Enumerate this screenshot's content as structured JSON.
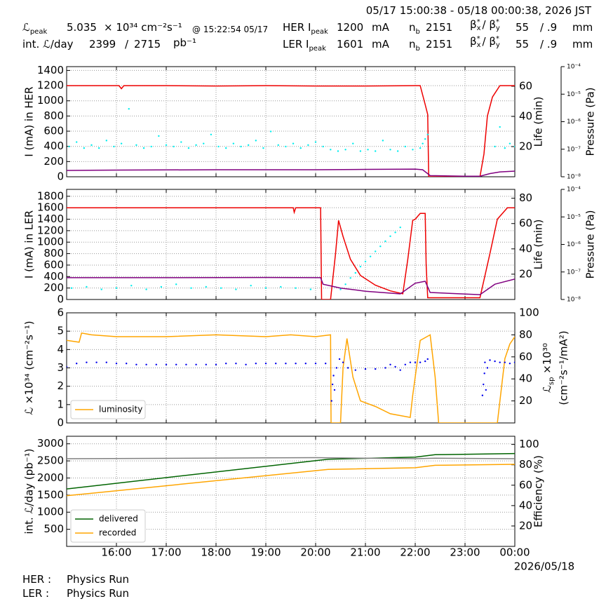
{
  "header": {
    "period": "05/17 15:00:38 - 05/18 00:00:38, 2026 JST",
    "peak_lumi": {
      "label": "ℒ",
      "label_sub": "peak",
      "value": 5.035,
      "unit": "× 10³⁴ cm⁻²s⁻¹",
      "time": "@ 15:22:54 05/17"
    },
    "int_lumi": {
      "label": "int. ℒ/day",
      "recorded": 2399,
      "sep": "/",
      "delivered": 2715,
      "unit": "pb⁻¹"
    },
    "her": {
      "label": "HER I",
      "label_sub": "peak",
      "current": 1200,
      "unit": "mA",
      "nb_label": "n",
      "nb_sub": "b",
      "nb": 2151,
      "b1": "β",
      "b1_sup": "*",
      "b1_sub": "x",
      "b2": "/ β",
      "b2_sup": "*",
      "b2_sub": "y",
      "beta_x": 55,
      "beta_y": "/ .9",
      "beta_unit": "mm"
    },
    "ler": {
      "label": "LER I",
      "label_sub": "peak",
      "current": 1601,
      "unit": "mA",
      "nb_label": "n",
      "nb_sub": "b",
      "nb": 2151,
      "b1": "β",
      "b1_sup": "*",
      "b1_sub": "x",
      "b2": "/ β",
      "b2_sup": "*",
      "b2_sub": "y",
      "beta_x": 55,
      "beta_y": "/ .9",
      "beta_unit": "mm"
    }
  },
  "footer": {
    "rows": [
      [
        "HER :",
        "Physics Run"
      ],
      [
        "LER :",
        "Physics Run"
      ]
    ]
  },
  "chart_data": [
    {
      "type": "line",
      "grid": true,
      "xlim": [
        15,
        24
      ],
      "xticks": [
        16,
        17,
        18,
        19,
        20,
        21,
        22,
        23
      ],
      "xtick_labels": false,
      "ylabel": "I (mA) in HER",
      "ylim": [
        0,
        1450
      ],
      "yticks": [
        0,
        200,
        400,
        600,
        800,
        1000,
        1200,
        1400
      ],
      "y2label": "Life (min)",
      "y2lim": [
        0,
        73
      ],
      "y2ticks": [
        20,
        40,
        60
      ],
      "y3label": "Pressure (Pa)",
      "y3lim": [
        1e-08,
        0.0001
      ],
      "y3log": true,
      "y3ticks": [
        {
          "value": 1e-08,
          "label": "10⁻⁸"
        },
        {
          "value": 1e-07,
          "label": "10⁻⁷"
        },
        {
          "value": 1e-06,
          "label": "10⁻⁶"
        },
        {
          "value": 1e-05,
          "label": "10⁻⁵"
        },
        {
          "value": 0.0001,
          "label": "10⁻⁴"
        }
      ],
      "series": [
        {
          "color": "#ee0000",
          "x": [
            15,
            15.5,
            16.05,
            16.1,
            16.15,
            16.5,
            17,
            18,
            19,
            20,
            21,
            22,
            22.1,
            22.2,
            22.25,
            22.27,
            22.5,
            23,
            23.3,
            23.38,
            23.45,
            23.55,
            23.7,
            24
          ],
          "values": [
            1200,
            1200,
            1200,
            1160,
            1200,
            1200,
            1200,
            1195,
            1200,
            1195,
            1195,
            1200,
            1200,
            950,
            820,
            0,
            0,
            0,
            0,
            300,
            800,
            1050,
            1200,
            1200
          ]
        },
        {
          "color": "#00eeee",
          "axis": "y2",
          "mode": "markers",
          "x": [
            15.05,
            15.2,
            15.35,
            15.5,
            15.65,
            15.8,
            15.95,
            16.1,
            16.25,
            16.4,
            16.55,
            16.7,
            16.85,
            17.0,
            17.15,
            17.3,
            17.45,
            17.6,
            17.75,
            17.9,
            18.05,
            18.2,
            18.35,
            18.5,
            18.65,
            18.8,
            18.95,
            19.1,
            19.25,
            19.4,
            19.55,
            19.7,
            19.85,
            20.0,
            20.15,
            20.3,
            20.45,
            20.6,
            20.75,
            20.9,
            21.05,
            21.2,
            21.35,
            21.5,
            21.65,
            21.8,
            21.95,
            22.1,
            22.15,
            22.2,
            22.25,
            23.6,
            23.7,
            23.8,
            23.9,
            24.0
          ],
          "values": [
            20,
            23,
            19,
            21,
            19,
            24,
            20,
            22,
            45,
            21,
            19,
            20,
            27,
            21,
            20,
            23,
            19,
            21,
            22,
            28,
            20,
            19,
            22,
            20,
            21,
            24,
            19,
            30,
            21,
            20,
            22,
            19,
            21,
            23,
            20,
            18,
            17,
            18,
            22,
            17,
            18,
            17,
            24,
            18,
            17,
            20,
            18,
            19,
            22,
            25,
            28,
            20,
            33,
            19,
            22,
            20
          ]
        },
        {
          "color": "#800080",
          "axis": "y3",
          "x": [
            15,
            16,
            18,
            20,
            21,
            22,
            22.15,
            22.3,
            23,
            23.3,
            23.5,
            23.7,
            24
          ],
          "values": [
            1.7e-08,
            1.75e-08,
            1.8e-08,
            1.8e-08,
            1.85e-08,
            1.9e-08,
            1.8e-08,
            1.1e-08,
            1.05e-08,
            1.05e-08,
            1.3e-08,
            1.5e-08,
            1.6e-08
          ]
        }
      ]
    },
    {
      "type": "line",
      "grid": true,
      "xlim": [
        15,
        24
      ],
      "xticks": [
        16,
        17,
        18,
        19,
        20,
        21,
        22,
        23
      ],
      "xtick_labels": false,
      "ylabel": "I (mA) in LER",
      "ylim": [
        0,
        1920
      ],
      "yticks": [
        0,
        200,
        400,
        600,
        800,
        1000,
        1200,
        1400,
        1600,
        1800
      ],
      "y2label": "Life (min)",
      "y2lim": [
        0,
        87
      ],
      "y2ticks": [
        20,
        40,
        60,
        80
      ],
      "y3label": "Pressure (Pa)",
      "y3lim": [
        1e-08,
        0.0001
      ],
      "y3log": true,
      "y3ticks": [
        {
          "value": 1e-08,
          "label": "10⁻⁸"
        },
        {
          "value": 1e-07,
          "label": "10⁻⁷"
        },
        {
          "value": 1e-06,
          "label": "10⁻⁶"
        },
        {
          "value": 1e-05,
          "label": "10⁻⁵"
        },
        {
          "value": 0.0001,
          "label": "10⁻⁴"
        }
      ],
      "series": [
        {
          "color": "#ee0000",
          "x": [
            15,
            16,
            17,
            18,
            19,
            19.55,
            19.57,
            19.6,
            20,
            20.1,
            20.12,
            20.3,
            20.4,
            20.46,
            20.55,
            20.7,
            20.9,
            21.2,
            21.5,
            21.75,
            21.85,
            21.95,
            22.0,
            22.1,
            22.2,
            22.22,
            22.25,
            23,
            23.3,
            23.5,
            23.65,
            23.85,
            24
          ],
          "values": [
            1600,
            1600,
            1600,
            1600,
            1600,
            1600,
            1520,
            1600,
            1600,
            1600,
            0,
            0,
            800,
            1380,
            1100,
            700,
            420,
            250,
            150,
            100,
            700,
            1380,
            1400,
            1500,
            1500,
            600,
            30,
            30,
            30,
            800,
            1400,
            1600,
            1600
          ]
        },
        {
          "color": "#00eeee",
          "axis": "y2",
          "mode": "markers",
          "x": [
            15.1,
            15.4,
            15.7,
            16.0,
            16.3,
            16.6,
            16.9,
            17.2,
            17.5,
            17.8,
            18.1,
            18.4,
            18.7,
            19.0,
            19.3,
            19.6,
            19.9,
            20.5,
            20.6,
            20.7,
            20.8,
            20.9,
            21.0,
            21.1,
            21.2,
            21.3,
            21.4,
            21.5,
            21.6,
            21.7
          ],
          "values": [
            9,
            10,
            8,
            9,
            11,
            8,
            10,
            12,
            9,
            10,
            9,
            8,
            11,
            9,
            10,
            9,
            8,
            8,
            12,
            17,
            21,
            26,
            30,
            34,
            38,
            42,
            46,
            50,
            53,
            57
          ]
        },
        {
          "color": "#800080",
          "axis": "y3",
          "x": [
            15,
            17,
            19,
            20.1,
            20.15,
            20.5,
            21,
            21.7,
            22.0,
            22.2,
            22.3,
            23.3,
            23.6,
            24
          ],
          "values": [
            6.2e-08,
            6.2e-08,
            6.3e-08,
            6.2e-08,
            3.6e-08,
            2.6e-08,
            2e-08,
            1.6e-08,
            3.9e-08,
            4.6e-08,
            1.8e-08,
            1.5e-08,
            3.6e-08,
            5.5e-08
          ]
        }
      ]
    },
    {
      "type": "line",
      "grid": true,
      "xlim": [
        15,
        24
      ],
      "xticks": [
        16,
        17,
        18,
        19,
        20,
        21,
        22,
        23
      ],
      "xtick_labels": false,
      "ylabel": "ℒ ×10³⁴ (cm⁻²s⁻¹)",
      "ylim": [
        0,
        6
      ],
      "yticks": [
        0,
        1,
        2,
        3,
        4,
        5,
        6
      ],
      "y2label": {
        "text": "ℒ",
        "sub": "sp",
        "rest": " ×10³⁰",
        "line2": "(cm⁻²s⁻¹/mA²)"
      },
      "y2lim": [
        0,
        100
      ],
      "y2ticks": [
        20,
        40,
        60,
        80,
        100
      ],
      "legend": "lower left",
      "series": [
        {
          "name": "luminosity",
          "color": "#ffa500",
          "x": [
            15,
            15.25,
            15.3,
            15.5,
            16,
            17,
            18,
            19,
            19.5,
            20,
            20.3,
            20.31,
            20.5,
            20.55,
            20.63,
            20.75,
            20.9,
            21.2,
            21.5,
            21.9,
            21.95,
            22.1,
            22.3,
            22.4,
            22.47,
            23,
            23.65,
            23.8,
            23.9,
            24
          ],
          "values": [
            4.5,
            4.4,
            4.9,
            4.8,
            4.7,
            4.7,
            4.8,
            4.7,
            4.8,
            4.7,
            4.8,
            0,
            0,
            3.0,
            4.6,
            2.5,
            1.2,
            0.9,
            0.5,
            0.3,
            1.5,
            4.5,
            4.8,
            2.5,
            0,
            0,
            0,
            3.5,
            4.3,
            4.7
          ]
        },
        {
          "color": "#0000ee",
          "axis": "y2",
          "mode": "markers",
          "x": [
            15.0,
            15.2,
            15.4,
            15.6,
            15.8,
            16.0,
            16.2,
            16.4,
            16.6,
            16.8,
            17.0,
            17.2,
            17.4,
            17.6,
            17.8,
            18.0,
            18.2,
            18.4,
            18.6,
            18.8,
            19.0,
            19.2,
            19.4,
            19.6,
            19.8,
            20.0,
            20.2,
            20.32,
            20.34,
            20.36,
            20.38,
            20.42,
            20.48,
            20.55,
            20.65,
            20.8,
            21.0,
            21.2,
            21.4,
            21.5,
            21.6,
            21.7,
            21.8,
            21.9,
            22.0,
            22.1,
            22.2,
            22.25,
            23.35,
            23.37,
            23.39,
            23.4,
            23.42,
            23.45,
            23.5,
            23.6,
            23.7,
            23.8,
            23.9,
            24.0
          ],
          "values": [
            51,
            54,
            55,
            55,
            55,
            54,
            54,
            53,
            53,
            53,
            53,
            53,
            53,
            53,
            53,
            53,
            54,
            54,
            53,
            54,
            54,
            54,
            54,
            54,
            54,
            54,
            54,
            20,
            35,
            43,
            30,
            50,
            58,
            55,
            50,
            48,
            49,
            49,
            50,
            53,
            51,
            48,
            53,
            55,
            55,
            55,
            56,
            58,
            25,
            35,
            45,
            55,
            30,
            50,
            57,
            56,
            55,
            55,
            54,
            55
          ]
        }
      ]
    },
    {
      "type": "line",
      "grid": true,
      "xlim": [
        15,
        24
      ],
      "xticks": [
        {
          "value": 16,
          "label": "16:00"
        },
        {
          "value": 17,
          "label": "17:00"
        },
        {
          "value": 18,
          "label": "18:00"
        },
        {
          "value": 19,
          "label": "19:00"
        },
        {
          "value": 20,
          "label": "20:00"
        },
        {
          "value": 21,
          "label": "21:00"
        },
        {
          "value": 22,
          "label": "22:00"
        },
        {
          "value": 23,
          "label": "23:00"
        },
        {
          "value": 24,
          "label": "00:00"
        }
      ],
      "xlabel": "2026/05/18",
      "ylabel": "int. ℒ/day (pb⁻¹)",
      "ylim": [
        0,
        3220
      ],
      "yticks": [
        500,
        1000,
        1500,
        2000,
        2500,
        3000
      ],
      "y2label": "Efficiency (%)",
      "y2lim": [
        0,
        108
      ],
      "y2ticks": [
        20,
        40,
        60,
        80,
        100
      ],
      "legend": "lower left",
      "series": [
        {
          "name": "delivered",
          "color": "#006400",
          "x": [
            15,
            20.25,
            22,
            22.4,
            24
          ],
          "values": [
            1680,
            2550,
            2610,
            2680,
            2715
          ]
        },
        {
          "name": "recorded",
          "color": "#ffa500",
          "x": [
            15,
            20.25,
            22,
            22.4,
            24
          ],
          "values": [
            1480,
            2250,
            2300,
            2370,
            2399
          ]
        },
        {
          "color": "#808080",
          "axis": "y2",
          "x": [
            15,
            20,
            22,
            22.4,
            24
          ],
          "values": [
            86,
            87,
            86,
            86.5,
            86
          ]
        }
      ]
    }
  ]
}
